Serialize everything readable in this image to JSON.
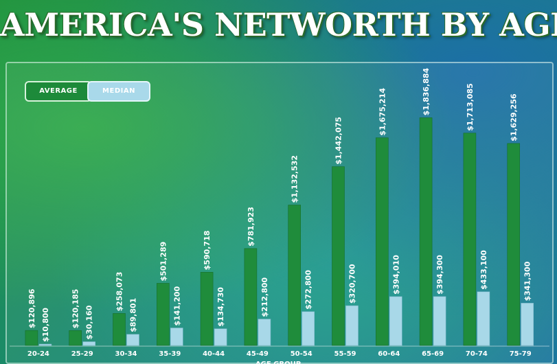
{
  "title": "AMERICA'S NETWORTH BY AGE",
  "legend": {
    "average": "AVERAGE",
    "median": "MEDIAN"
  },
  "colors": {
    "average": "#1f8c3b",
    "median": "#a8d8e8"
  },
  "chart_data": {
    "type": "bar",
    "title": "AMERICA'S NETWORTH BY AGE",
    "xlabel": "AGE GROUP",
    "ylabel": "",
    "ylim": [
      0,
      1900000
    ],
    "grid": false,
    "legend_position": "top-left",
    "categories": [
      "20-24",
      "25-29",
      "30-34",
      "35-39",
      "40-44",
      "45-49",
      "50-54",
      "55-59",
      "60-64",
      "65-69",
      "70-74",
      "75-79"
    ],
    "series": [
      {
        "name": "AVERAGE",
        "values": [
          120896,
          120185,
          258073,
          501289,
          590718,
          781923,
          1132532,
          1442075,
          1675214,
          1836884,
          1713085,
          1629256
        ],
        "labels": [
          "$120,896",
          "$120,185",
          "$258,073",
          "$501,289",
          "$590,718",
          "$781,923",
          "$1,132,532",
          "$1,442,075",
          "$1,675,214",
          "$1,836,884",
          "$1,713,085",
          "$1,629,256"
        ]
      },
      {
        "name": "MEDIAN",
        "values": [
          10800,
          30160,
          89801,
          141200,
          134730,
          212800,
          272800,
          320700,
          394010,
          394300,
          433100,
          341300
        ],
        "labels": [
          "$10,800",
          "$30,160",
          "$89,801",
          "$141,200",
          "$134,730",
          "$212,800",
          "$272,800",
          "$320,700",
          "$394,010",
          "$394,300",
          "$433,100",
          "$341,300"
        ]
      }
    ]
  }
}
